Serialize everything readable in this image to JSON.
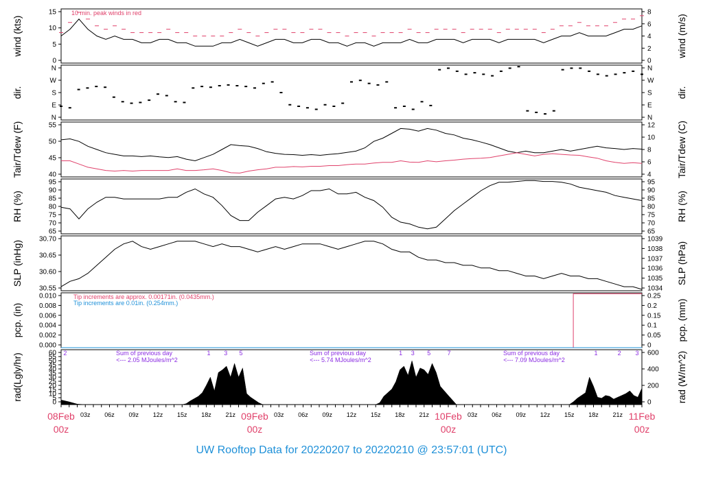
{
  "colors": {
    "red": "#e0406a",
    "blue": "#1e90d8",
    "purple": "#8a2be2",
    "black": "#000000"
  },
  "title": "UW Rooftop Data for 20220207  to  20220210 @ 23:57:01  (UTC)",
  "x_axis": {
    "hour_labels": [
      "03z",
      "06z",
      "09z",
      "12z",
      "15z",
      "18z",
      "21z",
      "03z",
      "06z",
      "09z",
      "12z",
      "15z",
      "18z",
      "21z",
      "03z",
      "06z",
      "09z",
      "12z",
      "15z",
      "18z",
      "21z"
    ],
    "day_labels": [
      {
        "date": "08Feb",
        "hour": "00z"
      },
      {
        "date": "09Feb",
        "hour": "00z"
      },
      {
        "date": "10Feb",
        "hour": "00z"
      },
      {
        "date": "11Feb",
        "hour": "00z"
      }
    ]
  },
  "chart_data": [
    {
      "type": "line",
      "name": "wind",
      "ylabel_left": "wind (kts)",
      "ylabel_right": "wind (m/s)",
      "ylim": [
        0,
        16
      ],
      "left_ticks": [
        "0",
        "5",
        "10",
        "15"
      ],
      "right_ticks": [
        "0",
        "2",
        "4",
        "6",
        "8"
      ],
      "annotation": "10 min. peak winds in red",
      "series": [
        {
          "values": [
            8,
            10,
            13,
            10,
            8,
            7,
            8,
            7,
            7,
            6,
            6,
            7,
            7,
            6,
            6,
            5,
            5,
            5,
            6,
            6,
            7,
            6,
            5,
            6,
            7,
            7,
            6,
            6,
            7,
            7,
            6,
            6,
            5,
            6,
            6,
            5,
            6,
            6,
            6,
            7,
            6,
            6,
            7,
            7,
            7,
            6,
            7,
            7,
            7,
            6,
            7,
            7,
            7,
            7,
            6,
            7,
            8,
            8,
            9,
            8,
            8,
            8,
            9,
            10,
            10,
            11
          ]
        },
        {
          "values": [
            9,
            12,
            15,
            13,
            11,
            10,
            11,
            10,
            9,
            9,
            9,
            9,
            10,
            9,
            9,
            8,
            8,
            8,
            8,
            9,
            10,
            9,
            8,
            9,
            10,
            10,
            9,
            9,
            10,
            10,
            9,
            9,
            8,
            9,
            9,
            8,
            9,
            9,
            9,
            10,
            9,
            9,
            10,
            10,
            10,
            9,
            10,
            10,
            10,
            9,
            10,
            10,
            10,
            10,
            9,
            10,
            11,
            11,
            12,
            11,
            11,
            11,
            12,
            13,
            13,
            14
          ]
        }
      ]
    },
    {
      "type": "scatter",
      "name": "direction",
      "ylabel_left": "dir.",
      "ylabel_right": "dir.",
      "ylim": [
        0,
        360
      ],
      "left_ticks": [
        "N",
        "E",
        "S",
        "W",
        "N"
      ],
      "right_ticks": [
        "N",
        "E",
        "S",
        "W",
        "N"
      ],
      "series": [
        {
          "values": [
            90,
            80,
            200,
            210,
            220,
            215,
            150,
            120,
            110,
            115,
            130,
            170,
            160,
            120,
            115,
            210,
            220,
            215,
            225,
            230,
            225,
            220,
            210,
            240,
            250,
            180,
            100,
            90,
            80,
            70,
            100,
            90,
            110,
            250,
            260,
            240,
            230,
            250,
            80,
            90,
            70,
            120,
            95,
            330,
            340,
            320,
            300,
            310,
            300,
            290,
            320,
            340,
            350,
            60,
            50,
            40,
            60,
            330,
            340,
            340,
            320,
            300,
            290,
            300,
            310,
            320,
            300
          ]
        }
      ]
    },
    {
      "type": "line",
      "name": "temperature",
      "ylabel_left": "Tair/Tdew (F)",
      "ylabel_right": "Tair/Tdew (C)",
      "ylim": [
        39,
        56
      ],
      "left_ticks": [
        "40",
        "45",
        "50",
        "55"
      ],
      "right_ticks": [
        "4",
        "6",
        "8",
        "10",
        "12"
      ],
      "series": [
        {
          "values": [
            50.5,
            50.8,
            50,
            48.5,
            47.5,
            46.5,
            46,
            45.5,
            45.5,
            45.3,
            45.5,
            45.2,
            45,
            45.3,
            44.5,
            44,
            45,
            46,
            47.5,
            49,
            48.7,
            48.5,
            47.8,
            46.8,
            46.3,
            46,
            45.9,
            45.7,
            45.9,
            45.7,
            46,
            46.2,
            46.6,
            47,
            48,
            50,
            51,
            52.5,
            54,
            53.8,
            53.2,
            54,
            53.5,
            52.5,
            52,
            51,
            50.5,
            49.8,
            49,
            48,
            47,
            46.5,
            47,
            46.5,
            46.5,
            47,
            47.5,
            47,
            47.5,
            48,
            48.5,
            48,
            47.8,
            47.5,
            47.8,
            47.6
          ]
        },
        {
          "values": [
            44,
            44,
            43,
            42,
            41.5,
            41,
            40.8,
            41,
            40.8,
            41,
            41,
            41,
            41,
            41.5,
            41,
            41,
            41.2,
            41.5,
            41,
            40.3,
            40.2,
            40.8,
            41.2,
            41.5,
            42,
            42,
            42.2,
            42.1,
            42.3,
            42.3,
            42.5,
            42.5,
            42.8,
            43,
            43,
            43.3,
            43.5,
            43.5,
            44,
            43.6,
            43.5,
            44,
            43.7,
            44,
            44.2,
            44.5,
            44.7,
            44.8,
            45,
            45.5,
            46,
            46.5,
            46,
            45.5,
            46,
            46.2,
            46,
            45.8,
            45.7,
            45.2,
            44.8,
            44,
            43.5,
            43.2,
            43.4,
            43.2
          ]
        }
      ]
    },
    {
      "type": "line",
      "name": "rh",
      "ylabel_left": "RH (%)",
      "ylabel_right": "RH (%)",
      "ylim": [
        64,
        97
      ],
      "left_ticks": [
        "65",
        "70",
        "75",
        "80",
        "85",
        "90",
        "95"
      ],
      "right_ticks": [
        "65",
        "70",
        "75",
        "80",
        "85",
        "90",
        "95"
      ],
      "series": [
        {
          "values": [
            80,
            79,
            73,
            79,
            83,
            86,
            86,
            85,
            85,
            85,
            85,
            85,
            86,
            86,
            89,
            91,
            88,
            86,
            81,
            75,
            72,
            72,
            77,
            81,
            85,
            86,
            85,
            87,
            90,
            90,
            91,
            88,
            88,
            89,
            86,
            84,
            80,
            74,
            71,
            70,
            68,
            67,
            68,
            73,
            78,
            82,
            86,
            90,
            93,
            95,
            95,
            95.5,
            96,
            96,
            95.5,
            95.5,
            95,
            94,
            92,
            91,
            90,
            89,
            87,
            86,
            85,
            84
          ]
        }
      ]
    },
    {
      "type": "line",
      "name": "slp",
      "ylabel_left": "SLP (inHg)",
      "ylabel_right": "SLP (hPa)",
      "ylim": [
        30.505,
        30.71
      ],
      "left_ticks": [
        "30.55",
        "30.60",
        "30.65",
        "30.70"
      ],
      "right_ticks": [
        "1034",
        "1035",
        "1036",
        "1037",
        "1038",
        "1039"
      ],
      "series": [
        {
          "values": [
            30.52,
            30.54,
            30.55,
            30.57,
            30.6,
            30.63,
            30.66,
            30.68,
            30.69,
            30.67,
            30.66,
            30.67,
            30.68,
            30.69,
            30.69,
            30.69,
            30.68,
            30.67,
            30.68,
            30.67,
            30.67,
            30.66,
            30.65,
            30.66,
            30.67,
            30.66,
            30.67,
            30.68,
            30.68,
            30.68,
            30.67,
            30.66,
            30.67,
            30.68,
            30.69,
            30.69,
            30.68,
            30.66,
            30.65,
            30.65,
            30.63,
            30.62,
            30.62,
            30.61,
            30.61,
            30.6,
            30.6,
            30.59,
            30.59,
            30.58,
            30.58,
            30.57,
            30.56,
            30.56,
            30.55,
            30.56,
            30.57,
            30.56,
            30.56,
            30.55,
            30.55,
            30.54,
            30.53,
            30.52,
            30.52,
            30.51
          ]
        }
      ]
    },
    {
      "type": "line",
      "name": "precip",
      "ylabel_left": "pcp. (in)",
      "ylabel_right": "pcp. (mm)",
      "ylim": [
        0,
        0.01
      ],
      "left_ticks": [
        "0.000",
        "0.002",
        "0.004",
        "0.006",
        "0.008",
        "0.010"
      ],
      "right_ticks": [
        "0",
        "0.05",
        "0.1",
        "0.15",
        "0.2",
        "0.25"
      ],
      "notes": [
        "Tip increments are approx. 0.00171in. (0.0435mm.)",
        "Tip increments are 0.01in. (0.254mm.)"
      ],
      "series": [
        {
          "x": [
            0,
            63.5,
            63.5,
            72
          ],
          "values": [
            0,
            0,
            0.00983,
            0.00983
          ]
        },
        {
          "x": [
            0,
            72
          ],
          "values": [
            0,
            0
          ]
        }
      ]
    },
    {
      "type": "area",
      "name": "radiation",
      "ylabel_left": "rad(Lgly/hr)",
      "ylabel_right": "rad (W/m^2)",
      "ylim": [
        0,
        60
      ],
      "left_ticks": [
        "0",
        "5",
        "10",
        "15",
        "20",
        "25",
        "30",
        "35",
        "40",
        "45",
        "50",
        "55",
        "60"
      ],
      "right_ticks": [
        "0",
        "200",
        "400",
        "600"
      ],
      "day_notes": [
        {
          "sum": "Sum of previous day",
          "value": "<--- 2.05 MJoules/m^2"
        },
        {
          "sum": "Sum of previous day",
          "value": "<--- 5.74 MJoules/m^2"
        },
        {
          "sum": "Sum of previous day",
          "value": "<--- 7.09 MJoules/m^2"
        }
      ],
      "markers": [
        {
          "text": "2",
          "x": 0.5
        },
        {
          "text": "1",
          "x": 18.3
        },
        {
          "text": "3",
          "x": 20.4
        },
        {
          "text": "5",
          "x": 22.3
        },
        {
          "text": "1",
          "x": 42.1
        },
        {
          "text": "3",
          "x": 43.6
        },
        {
          "text": "5",
          "x": 45.6
        },
        {
          "text": "7",
          "x": 48.1
        },
        {
          "text": "1",
          "x": 66.3
        },
        {
          "text": "2",
          "x": 69.2
        },
        {
          "text": "3",
          "x": 71.4
        }
      ],
      "series": [
        {
          "x": [
            0,
            1,
            2,
            3,
            15,
            15.5,
            16,
            17,
            17.5,
            18,
            18.5,
            19,
            19.5,
            20,
            20.5,
            21,
            21.5,
            22,
            22.5,
            23,
            23.5,
            24,
            24.5,
            25,
            39,
            39.5,
            40,
            41,
            41.5,
            42,
            42.5,
            43,
            43.5,
            44,
            44.5,
            45,
            45.5,
            46,
            46.5,
            47,
            48,
            48.5,
            49,
            63,
            63.5,
            64,
            65,
            65.5,
            66,
            66.5,
            67,
            67.5,
            68,
            68.5,
            69,
            69.5,
            70,
            70.5,
            71,
            71.5,
            72
          ],
          "values": [
            5,
            3,
            0.5,
            0,
            0,
            1,
            4,
            9,
            13,
            21,
            30,
            15,
            35,
            38,
            42,
            30,
            45,
            30,
            40,
            12,
            8,
            5,
            2,
            0,
            0,
            2,
            9,
            17,
            25,
            38,
            42,
            32,
            48,
            30,
            40,
            38,
            33,
            45,
            35,
            20,
            10,
            5,
            0,
            0,
            3,
            7,
            13,
            30,
            20,
            8,
            7,
            10,
            9,
            6,
            8,
            10,
            12,
            15,
            10,
            8,
            18
          ]
        }
      ]
    }
  ]
}
